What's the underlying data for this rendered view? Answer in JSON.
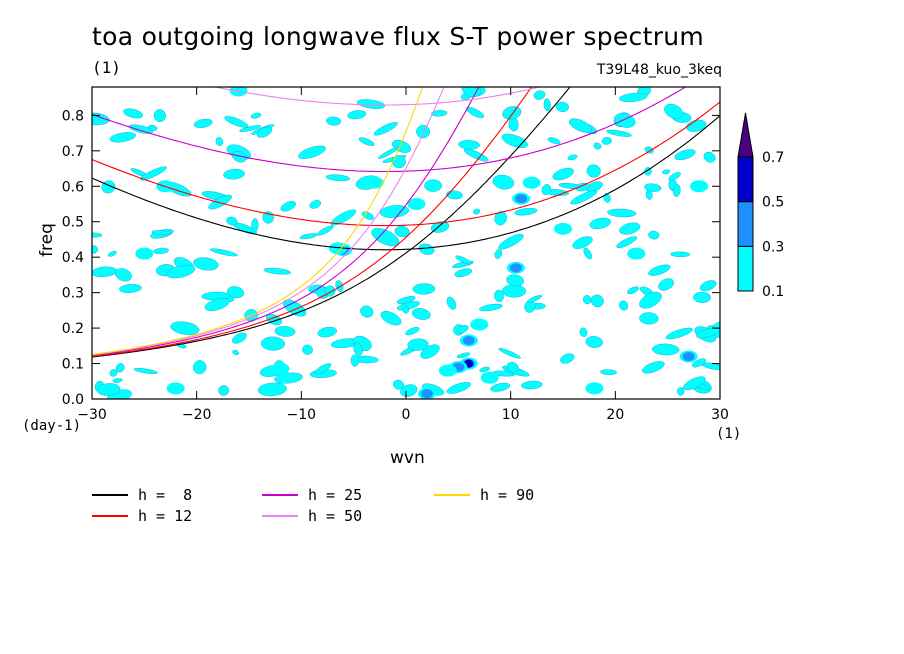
{
  "chart_data": {
    "type": "heatmap",
    "title": "toa outgoing longwave flux S-T power spectrum",
    "title_unit": "(1)",
    "run_id": "T39L48_kuo_3keq",
    "xlabel": "wvn",
    "ylabel": "freq",
    "x_unit": "(1)",
    "y_unit": "(day-1)",
    "xlim": [
      -30,
      30
    ],
    "ylim": [
      0.0,
      0.88
    ],
    "xticks": [
      "-30",
      "-20",
      "-10",
      "0",
      "10",
      "20",
      "30"
    ],
    "yticks": [
      "0.0",
      "0.1",
      "0.2",
      "0.3",
      "0.4",
      "0.5",
      "0.6",
      "0.7",
      "0.8"
    ],
    "colorbar": {
      "levels": [
        "0.1",
        "0.3",
        "0.5",
        "0.7"
      ],
      "colors": [
        "#00ffff",
        "#1e90ff",
        "#0000cd",
        "#4b0082"
      ]
    },
    "dispersion_curves": [
      {
        "label": "h =  8",
        "h": 8,
        "color": "#000000"
      },
      {
        "label": "h = 12",
        "h": 12,
        "color": "#ff0000"
      },
      {
        "label": "h = 25",
        "h": 25,
        "color": "#cc00cc"
      },
      {
        "label": "h = 50",
        "h": 50,
        "color": "#ee82ee"
      },
      {
        "label": "h = 90",
        "h": 90,
        "color": "#ffd700"
      }
    ],
    "spots": [
      {
        "x": 6,
        "y": 0.1,
        "level": 0.7
      },
      {
        "x": 5,
        "y": 0.09,
        "level": 0.5
      },
      {
        "x": 4,
        "y": 0.08,
        "level": 0.3
      },
      {
        "x": 10.5,
        "y": 0.37,
        "level": 0.5
      },
      {
        "x": 11,
        "y": 0.565,
        "level": 0.5
      },
      {
        "x": -6,
        "y": 0.42,
        "level": 0.5
      },
      {
        "x": -6.5,
        "y": 0.425,
        "level": 0.3
      },
      {
        "x": 6,
        "y": 0.165,
        "level": 0.5
      },
      {
        "x": 2,
        "y": 0.015,
        "level": 0.5
      },
      {
        "x": 27,
        "y": 0.12,
        "level": 0.5
      },
      {
        "x": 7,
        "y": 0.21,
        "level": 0.3
      },
      {
        "x": -3,
        "y": 0.61,
        "level": 0.3
      },
      {
        "x": -16,
        "y": 0.87,
        "level": 0.3
      },
      {
        "x": -23,
        "y": 0.6,
        "level": 0.3
      },
      {
        "x": -22,
        "y": 0.03,
        "level": 0.3
      },
      {
        "x": 1,
        "y": 0.55,
        "level": 0.3
      },
      {
        "x": -25,
        "y": 0.41,
        "level": 0.3
      },
      {
        "x": 15,
        "y": 0.48,
        "level": 0.3
      },
      {
        "x": 12,
        "y": 0.61,
        "level": 0.3
      },
      {
        "x": 22,
        "y": 0.41,
        "level": 0.3
      },
      {
        "x": 8,
        "y": 0.06,
        "level": 0.3
      },
      {
        "x": -12,
        "y": 0.085,
        "level": 0.3
      },
      {
        "x": 18,
        "y": 0.03,
        "level": 0.3
      },
      {
        "x": 28,
        "y": 0.6,
        "level": 0.3
      }
    ]
  }
}
